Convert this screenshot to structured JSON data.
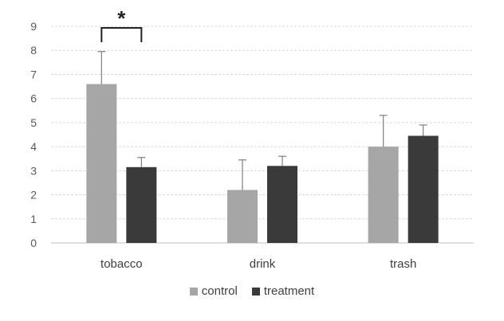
{
  "chart_data": {
    "type": "bar",
    "categories": [
      "tobacco",
      "drink",
      "trash"
    ],
    "series": [
      {
        "name": "control",
        "values": [
          6.6,
          2.2,
          4.0
        ],
        "errors": [
          1.35,
          1.25,
          1.3
        ],
        "color": "#a6a6a6"
      },
      {
        "name": "treatment",
        "values": [
          3.15,
          3.2,
          4.45
        ],
        "errors": [
          0.4,
          0.4,
          0.45
        ],
        "color": "#3a3a3a"
      }
    ],
    "title": "",
    "xlabel": "",
    "ylabel": "",
    "ylim": [
      0,
      9
    ],
    "yticks": [
      "0",
      "1",
      "2",
      "3",
      "4",
      "5",
      "6",
      "7",
      "8",
      "9"
    ],
    "grid": true,
    "legend_position": "bottom",
    "annotation": {
      "text": "*",
      "category": "tobacco"
    }
  }
}
